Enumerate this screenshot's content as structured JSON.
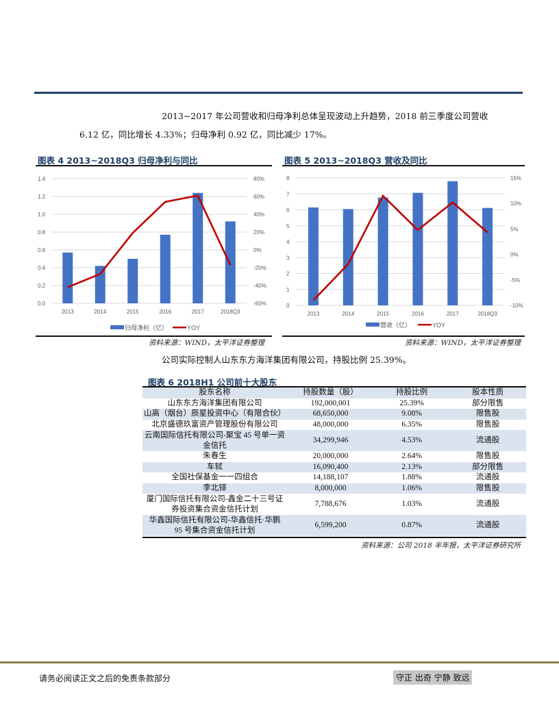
{
  "body": {
    "paragraph1_line1": "2013~2017 年公司营收和归母净利总体呈现波动上升趋势，2018 前三季度公司营收",
    "paragraph1_line2": "6.12 亿，同比增长 4.33%；归母净利 0.92 亿，同比减少 17%。",
    "paragraph2": "公司实际控制人山东东方海洋集团有限公司，持股比例 25.39%。"
  },
  "figure4": {
    "title": "图表 4 2013~2018Q3 归母净利与同比",
    "source": "资料来源：WIND，太平洋证券整理"
  },
  "figure5": {
    "title": "图表 5 2013~2018Q3 营收及同比",
    "source": "资料来源：WIND，太平洋证券整理"
  },
  "chart_data": [
    {
      "type": "bar",
      "title": "图表 4 2013~2018Q3 归母净利与同比",
      "categories": [
        "2013",
        "2014",
        "2015",
        "2016",
        "2017",
        "2018Q3"
      ],
      "series": [
        {
          "name": "归母净利（亿）",
          "type": "bar",
          "axis": "left",
          "color": "#4472c4",
          "values": [
            0.57,
            0.42,
            0.5,
            0.77,
            1.24,
            0.92
          ]
        },
        {
          "name": "YOY",
          "type": "line",
          "axis": "right",
          "color": "#c00000",
          "values": [
            -42,
            -27,
            19,
            54,
            61,
            -17
          ]
        }
      ],
      "left_axis": {
        "ticks": [
          "0.0",
          "0.2",
          "0.4",
          "0.6",
          "0.8",
          "1.0",
          "1.2",
          "1.4"
        ],
        "ylim": [
          0,
          1.4
        ]
      },
      "right_axis": {
        "ticks": [
          "-60%",
          "-40%",
          "-20%",
          "0%",
          "20%",
          "40%",
          "60%",
          "80%"
        ],
        "ylim": [
          -60,
          80
        ]
      },
      "legend": [
        "归母净利（亿）",
        "YOY"
      ],
      "legend_position": "bottom",
      "grid": true
    },
    {
      "type": "bar",
      "title": "图表 5 2013~2018Q3 营收及同比",
      "categories": [
        "2013",
        "2014",
        "2015",
        "2016",
        "2017",
        "2018Q3"
      ],
      "series": [
        {
          "name": "营收（亿）",
          "type": "bar",
          "axis": "left",
          "color": "#4472c4",
          "values": [
            6.15,
            6.05,
            6.77,
            7.07,
            7.8,
            6.12
          ]
        },
        {
          "name": "YOY",
          "type": "line",
          "axis": "right",
          "color": "#c00000",
          "values": [
            -9.0,
            -1.9,
            11.5,
            4.8,
            10.2,
            4.33
          ]
        }
      ],
      "left_axis": {
        "ticks": [
          "0",
          "1",
          "2",
          "3",
          "4",
          "5",
          "6",
          "7",
          "8"
        ],
        "ylim": [
          0,
          8
        ]
      },
      "right_axis": {
        "ticks": [
          "-10%",
          "-5%",
          "0%",
          "5%",
          "10%",
          "15%"
        ],
        "ylim": [
          -10,
          15
        ]
      },
      "legend": [
        "营收（亿）",
        "YOY"
      ],
      "legend_position": "bottom",
      "grid": true
    }
  ],
  "figure6": {
    "title": "图表 6 2018H1 公司前十大股东",
    "source": "资料来源：公司 2018 半年报，太平洋证券研究所",
    "headers": [
      "股东名称",
      "持股数量（股）",
      "持股比例",
      "股本性质"
    ],
    "rows": [
      {
        "name": "山东东方海洋集团有限公司",
        "shares": "192,000,001",
        "pct": "25.39%",
        "type": "部分限售"
      },
      {
        "name": "山高（烟台）辰星投资中心（有限合伙）",
        "shares": "68,650,000",
        "pct": "9.08%",
        "type": "限售股"
      },
      {
        "name": "北京盛德玖富资产管理股份有限公司",
        "shares": "48,000,000",
        "pct": "6.35%",
        "type": "限售股"
      },
      {
        "name_line1": "云南国际信托有限公司-聚宝 45 号单一资",
        "name_line2": "金信托",
        "shares": "34,299,946",
        "pct": "4.53%",
        "type": "流通股"
      },
      {
        "name": "朱春生",
        "shares": "20,000,000",
        "pct": "2.64%",
        "type": "限售股"
      },
      {
        "name": "车轼",
        "shares": "16,090,400",
        "pct": "2.13%",
        "type": "部分限售"
      },
      {
        "name": "全国社保基金一一四组合",
        "shares": "14,188,107",
        "pct": "1.88%",
        "type": "流通股"
      },
      {
        "name": "李北铎",
        "shares": "8,000,000",
        "pct": "1.06%",
        "type": "限售股"
      },
      {
        "name_line1": "厦门国际信托有限公司-鑫金二十三号证",
        "name_line2": "券投资集合资金信托计划",
        "shares": "7,788,676",
        "pct": "1.03%",
        "type": "流通股"
      },
      {
        "name_line1": "华鑫国际信托有限公司-华鑫信托·华鹏",
        "name_line2": "95 号集合资金信托计划",
        "shares": "6,599,200",
        "pct": "0.87%",
        "type": "流通股"
      }
    ]
  },
  "footer": {
    "disclaimer": "请务必阅读正文之后的免责条款部分",
    "motto": "守正 出奇 宁静 致远"
  },
  "colors": {
    "header_rule": "#1f3f66",
    "bar": "#4472c4",
    "line": "#c00000",
    "table_shade": "#dbe3ef",
    "footer_rule": "#8c7f4a"
  }
}
